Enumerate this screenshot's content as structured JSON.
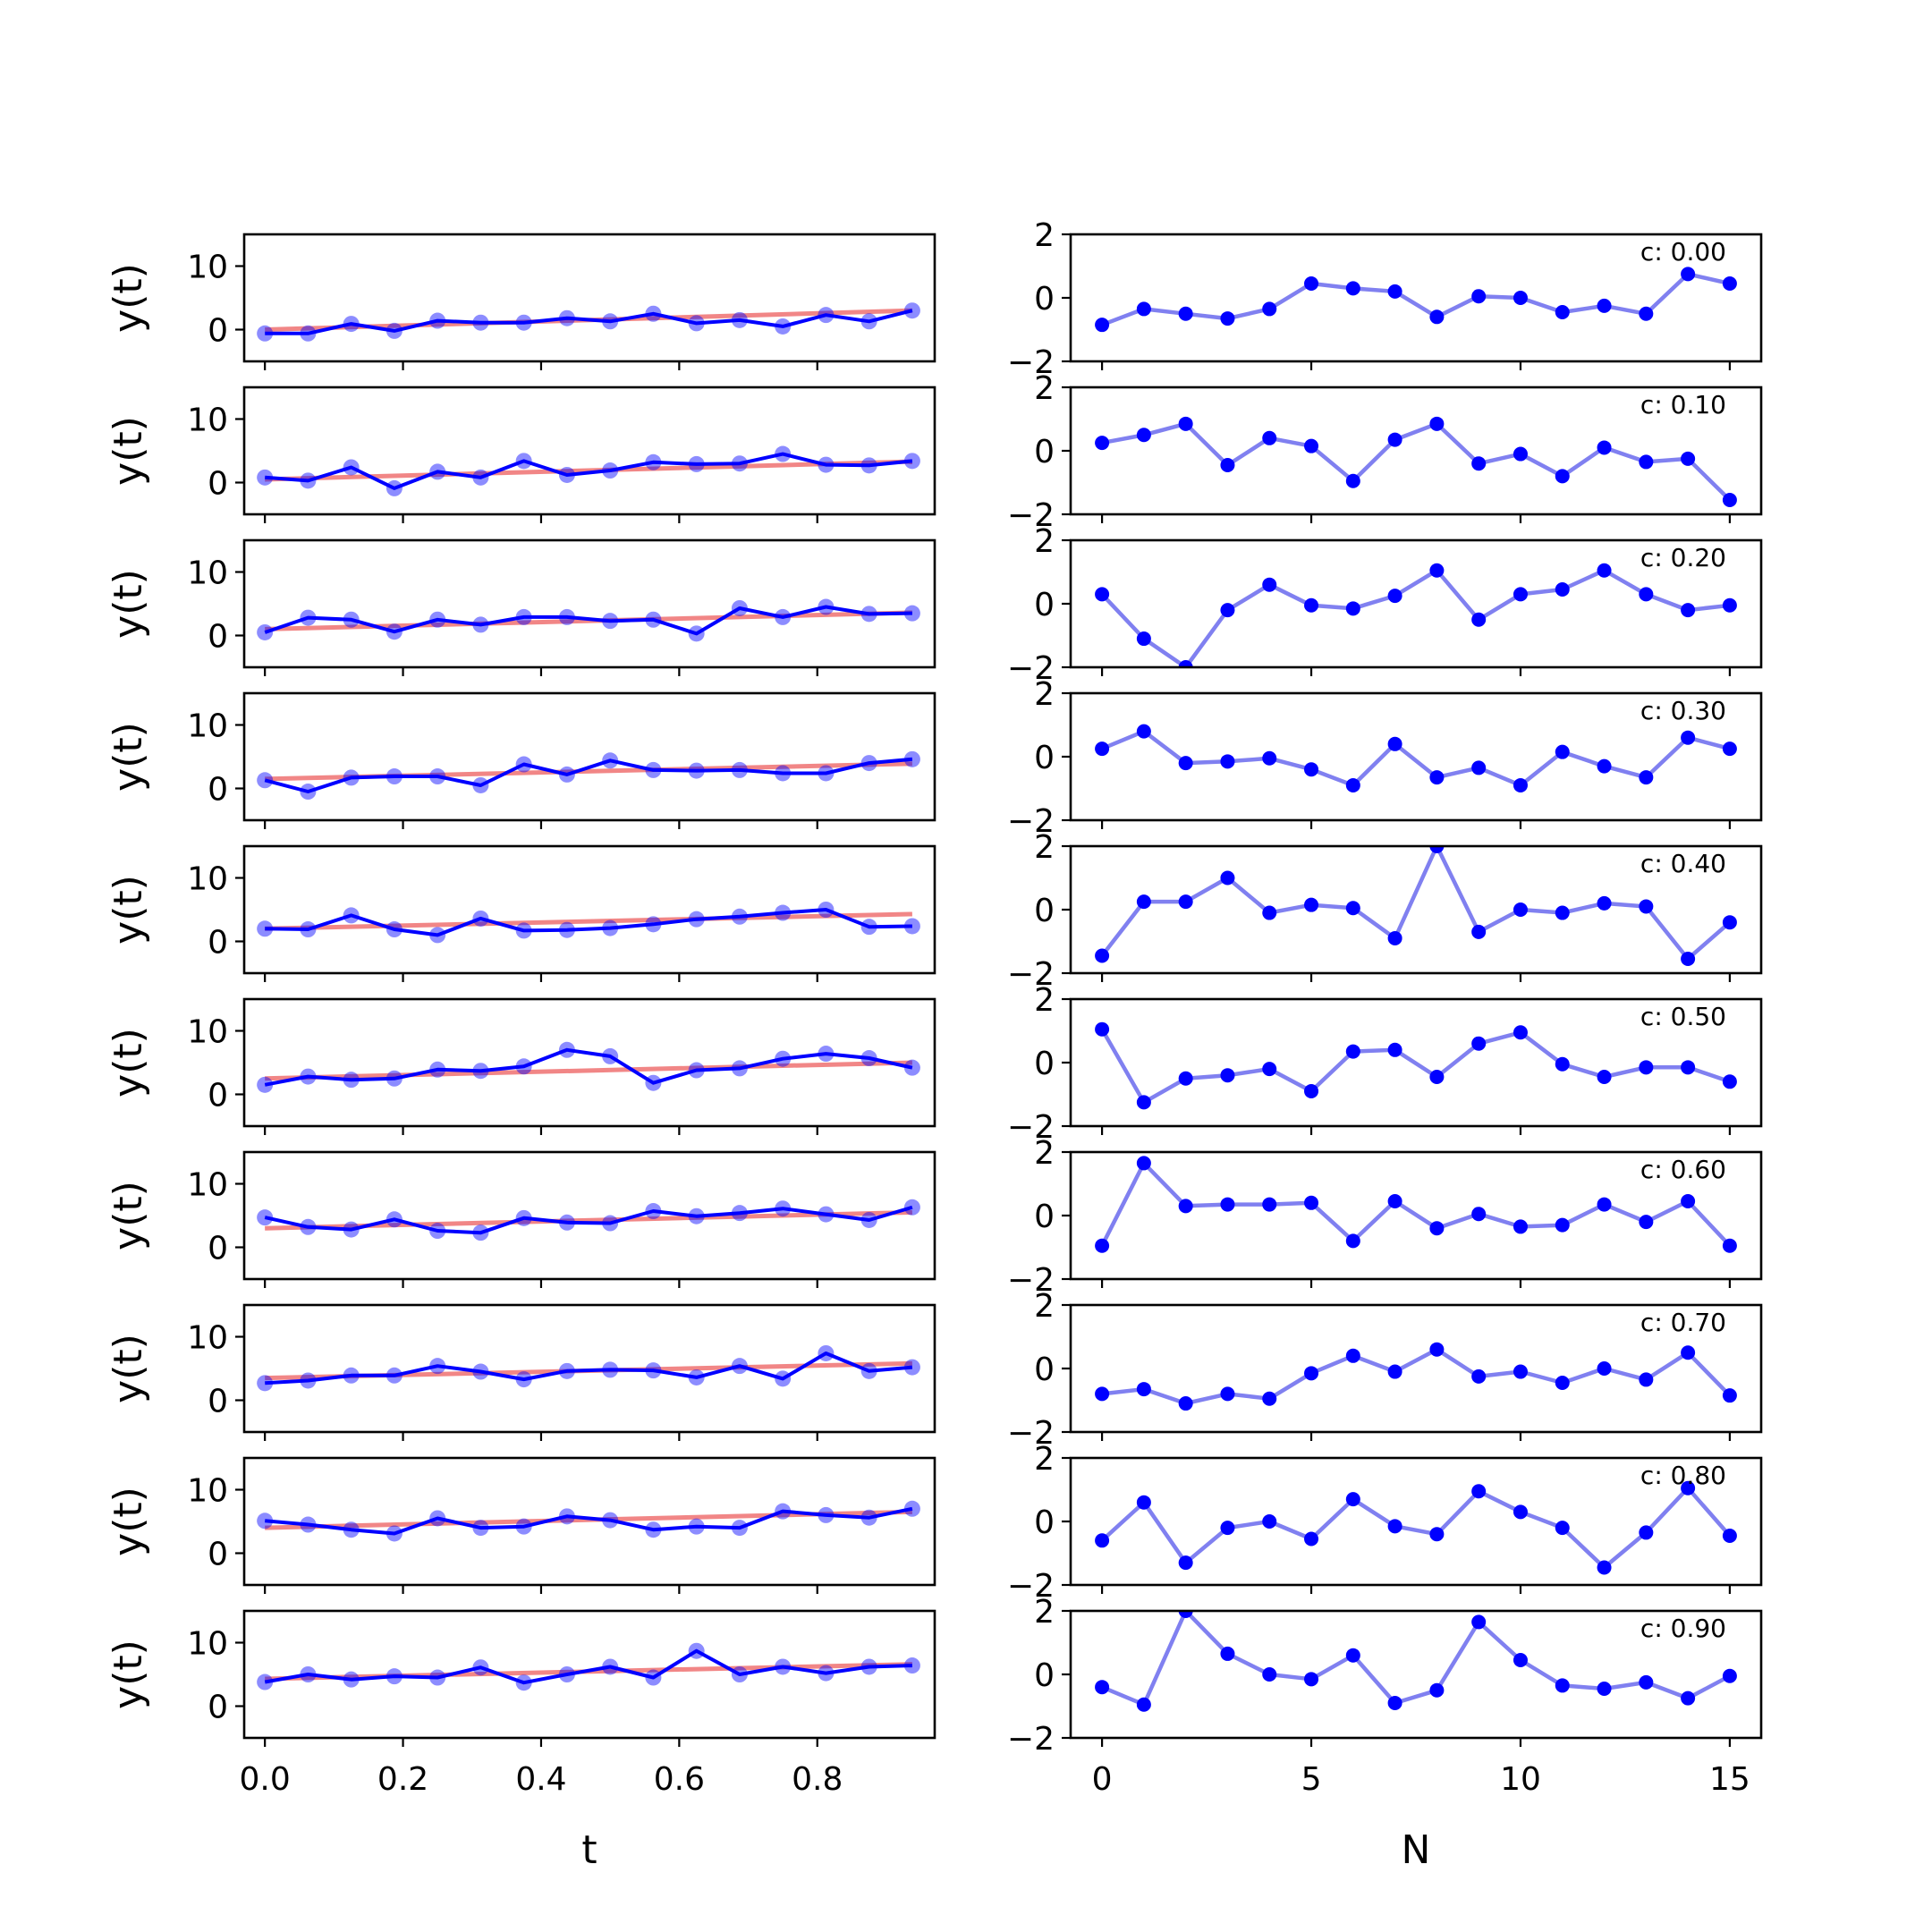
{
  "chart_data": [
    {
      "type": "line",
      "panel": "left",
      "xlabel": "t",
      "ylabel": "y(t)",
      "xlim": [
        -0.03,
        0.97
      ],
      "ylim": [
        -5,
        15
      ],
      "xticks": [
        "0.0",
        "0.2",
        "0.4",
        "0.6",
        "0.8"
      ],
      "xtick_values": [
        0,
        0.2,
        0.4,
        0.6,
        0.8
      ],
      "yticks": [
        "0",
        "10"
      ],
      "ytick_values": [
        0,
        10
      ],
      "x": [
        0,
        0.0625,
        0.125,
        0.1875,
        0.25,
        0.3125,
        0.375,
        0.4375,
        0.5,
        0.5625,
        0.625,
        0.6875,
        0.75,
        0.8125,
        0.875,
        0.9375
      ],
      "colors": {
        "observed": "#0000ff",
        "trend": "#f08080"
      },
      "rows": [
        {
          "trend": [
            0.0,
            3.0
          ],
          "values": [
            -0.6,
            -0.6,
            0.9,
            -0.2,
            1.4,
            1.1,
            1.1,
            1.8,
            1.3,
            2.5,
            1.0,
            1.5,
            0.5,
            2.3,
            1.3,
            3.0
          ]
        },
        {
          "trend": [
            0.5,
            3.3
          ],
          "values": [
            0.8,
            0.3,
            2.4,
            -0.9,
            1.7,
            0.8,
            3.4,
            1.2,
            1.9,
            3.2,
            2.9,
            3.0,
            4.5,
            2.8,
            2.7,
            3.4
          ]
        },
        {
          "trend": [
            1.0,
            3.6
          ],
          "values": [
            0.5,
            2.8,
            2.5,
            0.6,
            2.5,
            1.7,
            2.9,
            2.9,
            2.3,
            2.5,
            0.3,
            4.3,
            2.9,
            4.5,
            3.4,
            3.5
          ]
        },
        {
          "trend": [
            1.5,
            3.9
          ],
          "values": [
            1.3,
            -0.5,
            1.7,
            1.9,
            1.9,
            0.5,
            3.8,
            2.2,
            4.4,
            2.9,
            2.8,
            2.9,
            2.4,
            2.4,
            4.0,
            4.6
          ]
        },
        {
          "trend": [
            2.0,
            4.3
          ],
          "values": [
            2.0,
            1.9,
            4.1,
            1.9,
            1.0,
            3.6,
            1.7,
            1.8,
            2.1,
            2.7,
            3.5,
            3.9,
            4.5,
            5.0,
            2.3,
            2.4
          ]
        },
        {
          "trend": [
            2.5,
            5.0
          ],
          "values": [
            1.5,
            2.8,
            2.3,
            2.5,
            3.9,
            3.7,
            4.4,
            7.0,
            6.0,
            1.8,
            3.8,
            4.1,
            5.6,
            6.4,
            5.7,
            4.2
          ]
        },
        {
          "trend": [
            3.0,
            5.5
          ],
          "values": [
            4.7,
            3.2,
            2.8,
            4.4,
            2.6,
            2.3,
            4.6,
            3.9,
            3.8,
            5.7,
            4.9,
            5.4,
            6.1,
            5.2,
            4.3,
            6.3
          ]
        },
        {
          "trend": [
            3.5,
            5.8
          ],
          "values": [
            2.7,
            3.1,
            3.9,
            3.9,
            5.4,
            4.5,
            3.3,
            4.6,
            4.8,
            4.7,
            3.6,
            5.4,
            3.4,
            7.4,
            4.6,
            5.2
          ]
        },
        {
          "trend": [
            4.0,
            6.5
          ],
          "values": [
            5.1,
            4.5,
            3.7,
            3.1,
            5.5,
            4.0,
            4.2,
            5.8,
            5.2,
            3.7,
            4.2,
            4.0,
            6.6,
            6.0,
            5.6,
            7.0
          ]
        },
        {
          "trend": [
            4.3,
            6.6
          ],
          "values": [
            3.8,
            5.0,
            4.2,
            4.7,
            4.5,
            6.1,
            3.7,
            5.0,
            6.2,
            4.5,
            8.7,
            5.0,
            6.2,
            5.2,
            6.2,
            6.4
          ]
        }
      ]
    },
    {
      "type": "line",
      "panel": "right",
      "xlabel": "N",
      "xlim": [
        -0.75,
        15.75
      ],
      "ylim": [
        -2,
        2
      ],
      "xticks": [
        "0",
        "5",
        "10",
        "15"
      ],
      "xtick_values": [
        0,
        5,
        10,
        15
      ],
      "yticks": [
        "−2",
        "0",
        "2"
      ],
      "ytick_values": [
        -2,
        0,
        2
      ],
      "x": [
        0,
        1,
        2,
        3,
        4,
        5,
        6,
        7,
        8,
        9,
        10,
        11,
        12,
        13,
        14,
        15
      ],
      "colors": {
        "line": "#8080f0",
        "markers": "#0000ff"
      },
      "rows": [
        {
          "annotation": "c: 0.00",
          "values": [
            -0.85,
            -0.35,
            -0.5,
            -0.65,
            -0.35,
            0.45,
            0.3,
            0.2,
            -0.6,
            0.05,
            0.0,
            -0.45,
            -0.25,
            -0.5,
            0.75,
            0.45
          ]
        },
        {
          "annotation": "c: 0.10",
          "values": [
            0.25,
            0.5,
            0.85,
            -0.45,
            0.4,
            0.15,
            -0.95,
            0.35,
            0.85,
            -0.4,
            -0.1,
            -0.8,
            0.1,
            -0.35,
            -0.25,
            -1.55
          ]
        },
        {
          "annotation": "c: 0.20",
          "values": [
            0.3,
            -1.1,
            -2.0,
            -0.2,
            0.6,
            -0.05,
            -0.15,
            0.25,
            1.05,
            -0.5,
            0.3,
            0.45,
            1.05,
            0.3,
            -0.2,
            -0.05
          ]
        },
        {
          "annotation": "c: 0.30",
          "values": [
            0.25,
            0.8,
            -0.2,
            -0.15,
            -0.05,
            -0.4,
            -0.9,
            0.4,
            -0.65,
            -0.35,
            -0.9,
            0.15,
            -0.3,
            -0.65,
            0.6,
            0.25
          ]
        },
        {
          "annotation": "c: 0.40",
          "values": [
            -1.45,
            0.25,
            0.25,
            1.0,
            -0.1,
            0.15,
            0.05,
            -0.9,
            2.0,
            -0.7,
            0.0,
            -0.1,
            0.2,
            0.1,
            -1.55,
            -0.4
          ]
        },
        {
          "annotation": "c: 0.50",
          "values": [
            1.05,
            -1.25,
            -0.5,
            -0.4,
            -0.2,
            -0.9,
            0.35,
            0.4,
            -0.45,
            0.6,
            0.95,
            -0.05,
            -0.45,
            -0.15,
            -0.15,
            -0.6
          ]
        },
        {
          "annotation": "c: 0.60",
          "values": [
            -0.95,
            1.65,
            0.3,
            0.35,
            0.35,
            0.4,
            -0.8,
            0.45,
            -0.4,
            0.05,
            -0.35,
            -0.3,
            0.35,
            -0.2,
            0.45,
            -0.95
          ]
        },
        {
          "annotation": "c: 0.70",
          "values": [
            -0.8,
            -0.65,
            -1.1,
            -0.8,
            -0.95,
            -0.15,
            0.4,
            -0.1,
            0.6,
            -0.25,
            -0.1,
            -0.45,
            0.0,
            -0.35,
            0.5,
            -0.85
          ]
        },
        {
          "annotation": "c: 0.80",
          "values": [
            -0.6,
            0.6,
            -1.3,
            -0.2,
            0.0,
            -0.55,
            0.7,
            -0.15,
            -0.4,
            0.95,
            0.3,
            -0.2,
            -1.45,
            -0.35,
            1.05,
            -0.45
          ]
        },
        {
          "annotation": "c: 0.90",
          "values": [
            -0.4,
            -0.95,
            2.0,
            0.65,
            0.0,
            -0.15,
            0.6,
            -0.9,
            -0.5,
            1.65,
            0.45,
            -0.35,
            -0.45,
            -0.25,
            -0.75,
            -0.05
          ]
        }
      ]
    }
  ]
}
